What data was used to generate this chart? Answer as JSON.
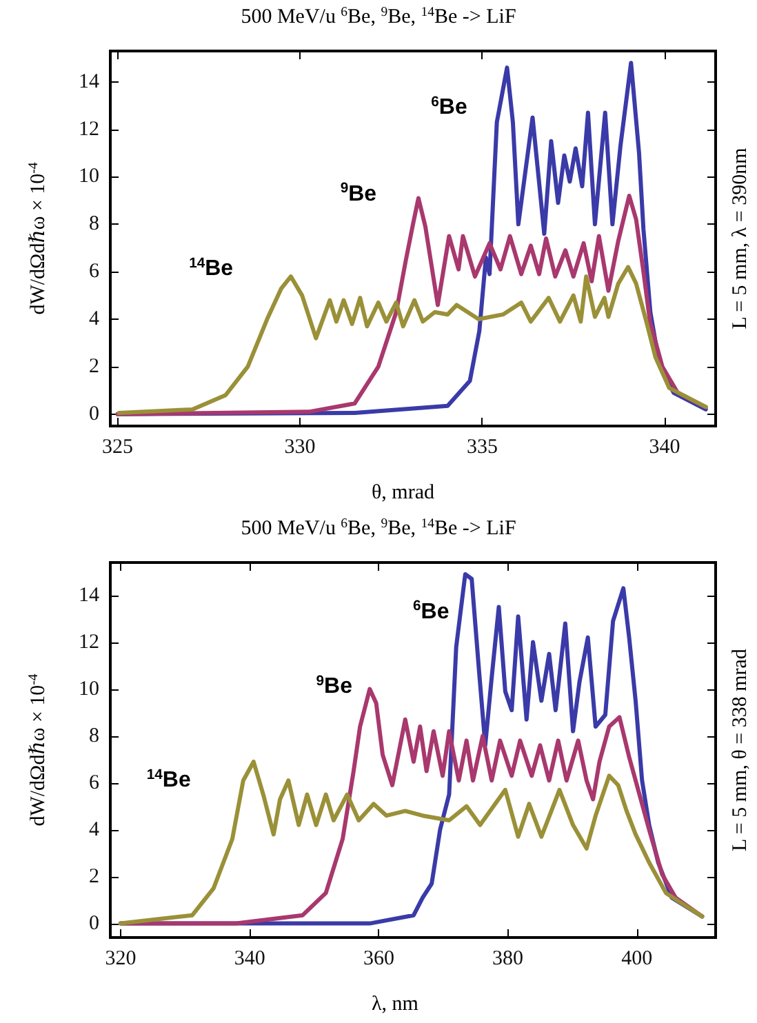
{
  "chart_data": [
    {
      "type": "line",
      "title": "500 MeV/u $^{6}$Be, $^{9}$Be, $^{14}$Be -> LiF",
      "xlabel": "θ, mrad",
      "ylabel": "dW/dΩdℏω × 10$^{-4}$",
      "annotations": [
        "L = 5 mm, λ = 390nm"
      ],
      "xlim": [
        324.8,
        341.4
      ],
      "xticks": [
        325,
        330,
        335,
        340
      ],
      "ylim": [
        -0.5,
        15.3
      ],
      "yticks": [
        0,
        2,
        4,
        6,
        8,
        10,
        12,
        14
      ],
      "grid": false,
      "legend": false,
      "marker": "none",
      "line_style": "solid",
      "series": [
        {
          "name": "$^{6}$Be",
          "color": "#3a3aa8",
          "x": [
            325,
            331.5,
            334.05,
            334.66,
            334.92,
            335.1,
            335.2,
            335.4,
            335.68,
            335.84,
            335.99,
            336.38,
            336.7,
            336.89,
            337.08,
            337.25,
            337.4,
            337.56,
            337.74,
            337.9,
            338.09,
            338.37,
            338.57,
            338.79,
            339.08,
            339.3,
            339.42,
            339.61,
            339.87,
            340.25,
            341.13
          ],
          "values": [
            0,
            0.05,
            0.35,
            1.4,
            3.5,
            6.6,
            5.9,
            12.3,
            14.6,
            12.3,
            8.0,
            12.5,
            7.6,
            11.5,
            8.9,
            10.9,
            9.8,
            11.2,
            9.6,
            12.7,
            8.0,
            12.7,
            8.0,
            11.3,
            14.8,
            11.0,
            7.8,
            4.3,
            2.0,
            0.9,
            0.2
          ]
        },
        {
          "name": "$^{9}$Be",
          "color": "#a8386e",
          "x": [
            325,
            330.25,
            331.5,
            332.15,
            332.64,
            332.9,
            333.1,
            333.25,
            333.44,
            333.78,
            334.09,
            334.35,
            334.47,
            334.8,
            335.2,
            335.5,
            335.76,
            336.07,
            336.33,
            336.56,
            336.75,
            337.0,
            337.28,
            337.5,
            337.78,
            338.0,
            338.2,
            338.46,
            338.73,
            339.03,
            339.22,
            339.42,
            339.6,
            339.94,
            340.36,
            341.13
          ],
          "values": [
            0,
            0.1,
            0.45,
            2.0,
            4.3,
            6.45,
            8.0,
            9.1,
            7.9,
            4.6,
            7.5,
            6.1,
            7.5,
            5.8,
            7.2,
            6.1,
            7.5,
            5.9,
            7.1,
            5.9,
            7.4,
            5.8,
            6.9,
            5.8,
            7.2,
            5.6,
            7.5,
            5.2,
            7.3,
            9.2,
            8.2,
            6.0,
            3.9,
            2.0,
            0.9,
            0.3
          ]
        },
        {
          "name": "$^{14}$Be",
          "color": "#9a9038",
          "x": [
            325.04,
            327.05,
            327.96,
            328.57,
            329.1,
            329.49,
            329.75,
            330.06,
            330.44,
            330.82,
            331.0,
            331.2,
            331.43,
            331.65,
            331.84,
            332.15,
            332.37,
            332.64,
            332.83,
            333.14,
            333.37,
            333.7,
            334.05,
            334.3,
            334.9,
            335.57,
            336.07,
            336.33,
            336.82,
            337.13,
            337.5,
            337.7,
            337.85,
            338.09,
            338.35,
            338.46,
            338.73,
            339.0,
            339.22,
            339.5,
            339.75,
            340.13,
            341.13
          ],
          "values": [
            0.05,
            0.2,
            0.8,
            2.0,
            4.0,
            5.3,
            5.8,
            5.0,
            3.2,
            4.8,
            3.9,
            4.8,
            3.8,
            4.9,
            3.7,
            4.7,
            3.9,
            4.7,
            3.7,
            4.8,
            3.9,
            4.3,
            4.2,
            4.6,
            4.0,
            4.2,
            4.7,
            3.9,
            4.9,
            3.9,
            5.0,
            3.9,
            5.8,
            4.1,
            4.9,
            4.1,
            5.5,
            6.2,
            5.5,
            3.9,
            2.4,
            1.1,
            0.3
          ]
        }
      ]
    },
    {
      "type": "line",
      "title": "500 MeV/u $^{6}$Be, $^{9}$Be, $^{14}$Be -> LiF",
      "xlabel": "λ, nm",
      "ylabel": "dW/dΩdℏω × 10$^{-4}$",
      "annotations": [
        "L = 5 mm, θ = 338 mrad"
      ],
      "xlim": [
        318.4,
        412.2
      ],
      "xticks": [
        320,
        340,
        360,
        380,
        400
      ],
      "ylim": [
        -0.6,
        15.4
      ],
      "yticks": [
        0,
        2,
        4,
        6,
        8,
        10,
        12,
        14
      ],
      "grid": false,
      "legend": false,
      "marker": "none",
      "line_style": "solid",
      "series": [
        {
          "name": "$^{6}$Be",
          "color": "#3a3aa8",
          "x": [
            320,
            358.6,
            365.4,
            366.8,
            368.2,
            369.5,
            370.9,
            372.0,
            373.4,
            374.4,
            375.5,
            376.5,
            377.5,
            378.6,
            379.6,
            380.6,
            381.6,
            382.9,
            383.9,
            385.2,
            386.4,
            387.4,
            388.9,
            390.1,
            391.1,
            392.4,
            393.6,
            395.1,
            396.3,
            397.9,
            398.8,
            399.8,
            400.8,
            401.9,
            403.3,
            405.4,
            410.1
          ],
          "values": [
            0,
            0,
            0.35,
            1.1,
            1.7,
            4.0,
            5.5,
            11.8,
            14.9,
            14.7,
            10.9,
            7.6,
            10.5,
            13.5,
            9.9,
            9.1,
            13.1,
            8.7,
            12.0,
            9.5,
            11.5,
            9.1,
            12.8,
            8.2,
            10.3,
            12.2,
            8.4,
            8.9,
            12.9,
            14.3,
            12.2,
            9.5,
            6.1,
            4.2,
            2.6,
            1.1,
            0.3
          ]
        },
        {
          "name": "$^{9}$Be",
          "color": "#a8386e",
          "x": [
            320,
            337.9,
            348.2,
            351.8,
            354.4,
            356.1,
            357.1,
            358.6,
            359.6,
            360.6,
            362.1,
            364.1,
            365.4,
            366.4,
            367.4,
            368.5,
            369.9,
            370.9,
            372.4,
            373.6,
            374.6,
            376.1,
            377.5,
            378.8,
            380.6,
            381.9,
            383.7,
            385.0,
            386.4,
            387.8,
            389.1,
            390.9,
            392.2,
            393.2,
            394.2,
            395.7,
            397.3,
            398.8,
            400.4,
            401.9,
            403.9,
            406.0,
            410.1
          ],
          "values": [
            0,
            0,
            0.35,
            1.3,
            3.6,
            6.5,
            8.4,
            10.0,
            9.4,
            7.2,
            5.9,
            8.7,
            6.9,
            8.4,
            6.5,
            8.2,
            6.3,
            8.2,
            6.1,
            7.8,
            6.1,
            8.0,
            6.1,
            7.8,
            6.3,
            7.8,
            6.3,
            7.6,
            6.1,
            7.8,
            6.1,
            7.8,
            6.1,
            5.3,
            6.9,
            8.4,
            8.8,
            7.1,
            5.5,
            4.0,
            2.1,
            1.1,
            0.3
          ]
        },
        {
          "name": "$^{14}$Be",
          "color": "#9a9038",
          "x": [
            320,
            331.1,
            334.4,
            337.3,
            339.0,
            340.6,
            342.1,
            343.7,
            344.7,
            346.0,
            347.6,
            348.9,
            350.3,
            351.8,
            353.0,
            355.1,
            356.9,
            359.2,
            361.2,
            364.1,
            366.8,
            370.9,
            373.6,
            375.7,
            379.6,
            381.6,
            383.3,
            385.2,
            388.0,
            390.1,
            392.2,
            393.6,
            395.7,
            397.1,
            398.4,
            399.8,
            401.9,
            404.5,
            410.1
          ],
          "values": [
            0,
            0.35,
            1.5,
            3.6,
            6.1,
            6.9,
            5.5,
            3.8,
            5.3,
            6.1,
            4.2,
            5.5,
            4.2,
            5.5,
            4.4,
            5.5,
            4.4,
            5.1,
            4.6,
            4.8,
            4.6,
            4.4,
            5.0,
            4.2,
            5.7,
            3.7,
            5.1,
            3.7,
            5.7,
            4.2,
            3.2,
            4.6,
            6.3,
            5.9,
            4.8,
            3.8,
            2.6,
            1.3,
            0.3
          ]
        }
      ]
    }
  ]
}
